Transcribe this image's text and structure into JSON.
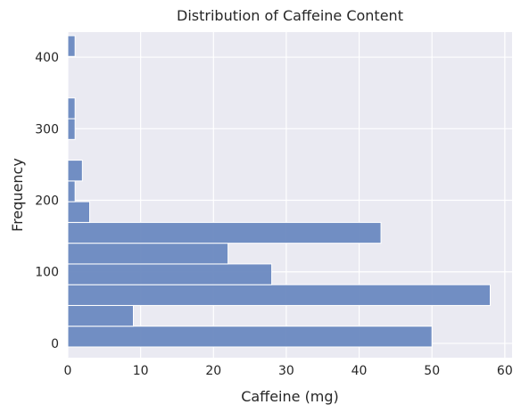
{
  "chart_data": {
    "type": "bar",
    "orientation": "horizontal-histogram",
    "title": "Distribution of Caffeine Content",
    "xlabel": "Caffeine (mg)",
    "ylabel": "Frequency",
    "xlim": [
      0,
      61
    ],
    "ylim": [
      -20,
      435
    ],
    "x_ticks": [
      0,
      10,
      20,
      30,
      40,
      50,
      60
    ],
    "y_ticks": [
      0,
      100,
      200,
      300,
      400
    ],
    "grid": true,
    "bar_color": "#6a89c0",
    "background_color": "#eaeaf2",
    "bins": [
      {
        "y_start": -5,
        "y_end": 24,
        "value": 50
      },
      {
        "y_start": 24,
        "y_end": 53,
        "value": 9
      },
      {
        "y_start": 53,
        "y_end": 82,
        "value": 58
      },
      {
        "y_start": 82,
        "y_end": 111,
        "value": 28
      },
      {
        "y_start": 111,
        "y_end": 140,
        "value": 22
      },
      {
        "y_start": 140,
        "y_end": 169,
        "value": 43
      },
      {
        "y_start": 169,
        "y_end": 198,
        "value": 3
      },
      {
        "y_start": 198,
        "y_end": 227,
        "value": 1
      },
      {
        "y_start": 227,
        "y_end": 256,
        "value": 2
      },
      {
        "y_start": 256,
        "y_end": 285,
        "value": 0
      },
      {
        "y_start": 285,
        "y_end": 314,
        "value": 1
      },
      {
        "y_start": 314,
        "y_end": 343,
        "value": 1
      },
      {
        "y_start": 343,
        "y_end": 372,
        "value": 0
      },
      {
        "y_start": 372,
        "y_end": 401,
        "value": 0
      },
      {
        "y_start": 401,
        "y_end": 430,
        "value": 1
      }
    ]
  }
}
